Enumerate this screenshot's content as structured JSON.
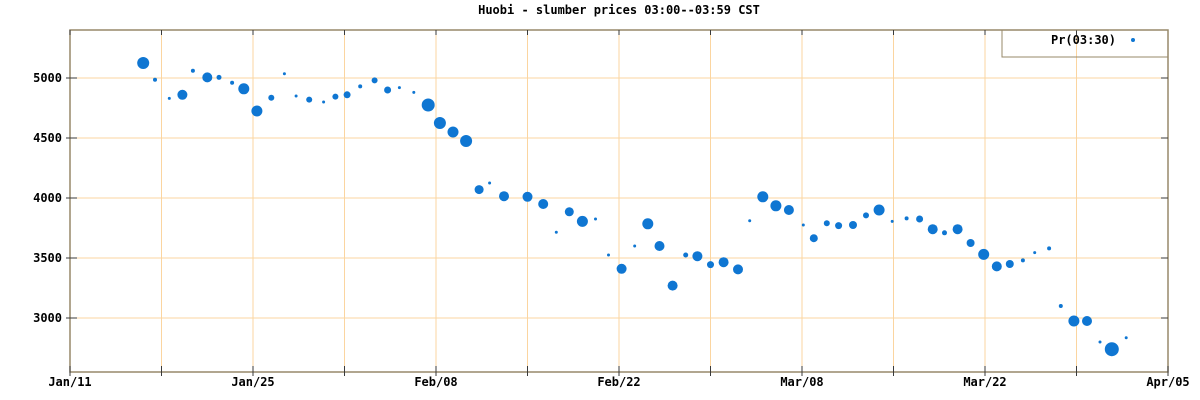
{
  "chart_data": {
    "type": "scatter",
    "title": "Huobi - slumber prices 03:00--03:59 CST",
    "legend": {
      "label": "Pr(03:30)",
      "position": "top-right",
      "boxed": true,
      "marker": "point"
    },
    "x_axis": {
      "kind": "date",
      "range_days": [
        0,
        84
      ],
      "minor_interval_days": 7,
      "grid": true,
      "major_ticks": [
        {
          "d": 0,
          "label": "Jan/11"
        },
        {
          "d": 14,
          "label": "Jan/25"
        },
        {
          "d": 28,
          "label": "Feb/08"
        },
        {
          "d": 42,
          "label": "Feb/22"
        },
        {
          "d": 56,
          "label": "Mar/08"
        },
        {
          "d": 70,
          "label": "Mar/22"
        },
        {
          "d": 84,
          "label": "Apr/05"
        }
      ]
    },
    "y_axis": {
      "range": [
        2550,
        5400
      ],
      "ticks": [
        3000,
        3500,
        4000,
        4500,
        5000
      ],
      "grid": true
    },
    "colors": {
      "point": "#0F76D2",
      "grid": "#FBD5A0",
      "frame": "#97886A",
      "tick": "#3A3A3A",
      "text": "#000000",
      "background": "#FFFFFF"
    },
    "points": [
      {
        "d": 5.6,
        "p": 5125,
        "r": 6
      },
      {
        "d": 6.5,
        "p": 4985,
        "r": 2
      },
      {
        "d": 7.6,
        "p": 4830,
        "r": 1.5
      },
      {
        "d": 8.6,
        "p": 4860,
        "r": 5
      },
      {
        "d": 9.4,
        "p": 5060,
        "r": 2
      },
      {
        "d": 10.5,
        "p": 5005,
        "r": 5
      },
      {
        "d": 11.4,
        "p": 5005,
        "r": 2.5
      },
      {
        "d": 12.4,
        "p": 4960,
        "r": 2
      },
      {
        "d": 13.3,
        "p": 4910,
        "r": 5.5
      },
      {
        "d": 14.3,
        "p": 4725,
        "r": 5.5
      },
      {
        "d": 15.4,
        "p": 4835,
        "r": 3
      },
      {
        "d": 16.4,
        "p": 5035,
        "r": 1.5
      },
      {
        "d": 17.3,
        "p": 4850,
        "r": 1.5
      },
      {
        "d": 18.3,
        "p": 4820,
        "r": 3
      },
      {
        "d": 19.4,
        "p": 4800,
        "r": 1.5
      },
      {
        "d": 20.3,
        "p": 4845,
        "r": 3
      },
      {
        "d": 21.2,
        "p": 4860,
        "r": 3.5
      },
      {
        "d": 22.2,
        "p": 4930,
        "r": 2
      },
      {
        "d": 23.3,
        "p": 4980,
        "r": 3
      },
      {
        "d": 24.3,
        "p": 4900,
        "r": 3.5
      },
      {
        "d": 25.2,
        "p": 4920,
        "r": 1.5
      },
      {
        "d": 26.3,
        "p": 4880,
        "r": 1.5
      },
      {
        "d": 27.4,
        "p": 4775,
        "r": 6.5
      },
      {
        "d": 28.3,
        "p": 4625,
        "r": 6
      },
      {
        "d": 29.3,
        "p": 4550,
        "r": 5.5
      },
      {
        "d": 30.3,
        "p": 4475,
        "r": 6
      },
      {
        "d": 31.3,
        "p": 4070,
        "r": 4.5
      },
      {
        "d": 32.1,
        "p": 4125,
        "r": 1.5
      },
      {
        "d": 33.2,
        "p": 4015,
        "r": 5
      },
      {
        "d": 35.0,
        "p": 4010,
        "r": 5
      },
      {
        "d": 36.2,
        "p": 3950,
        "r": 5
      },
      {
        "d": 37.2,
        "p": 3715,
        "r": 1.5
      },
      {
        "d": 38.2,
        "p": 3885,
        "r": 4.5
      },
      {
        "d": 39.2,
        "p": 3805,
        "r": 5.5
      },
      {
        "d": 40.2,
        "p": 3825,
        "r": 1.5
      },
      {
        "d": 41.2,
        "p": 3525,
        "r": 1.5
      },
      {
        "d": 42.2,
        "p": 3410,
        "r": 5
      },
      {
        "d": 43.2,
        "p": 3600,
        "r": 1.5
      },
      {
        "d": 44.2,
        "p": 3785,
        "r": 5.5
      },
      {
        "d": 45.1,
        "p": 3600,
        "r": 5
      },
      {
        "d": 46.1,
        "p": 3270,
        "r": 5
      },
      {
        "d": 47.1,
        "p": 3525,
        "r": 2.5
      },
      {
        "d": 48,
        "p": 3515,
        "r": 5
      },
      {
        "d": 49,
        "p": 3445,
        "r": 3.5
      },
      {
        "d": 50,
        "p": 3465,
        "r": 5
      },
      {
        "d": 51.1,
        "p": 3405,
        "r": 5
      },
      {
        "d": 52,
        "p": 3810,
        "r": 1.5
      },
      {
        "d": 53,
        "p": 4010,
        "r": 5.5
      },
      {
        "d": 54,
        "p": 3935,
        "r": 5.5
      },
      {
        "d": 55,
        "p": 3900,
        "r": 5
      },
      {
        "d": 56.1,
        "p": 3775,
        "r": 1.5
      },
      {
        "d": 56.9,
        "p": 3665,
        "r": 4
      },
      {
        "d": 57.9,
        "p": 3790,
        "r": 3
      },
      {
        "d": 58.8,
        "p": 3770,
        "r": 3.5
      },
      {
        "d": 59.9,
        "p": 3775,
        "r": 4
      },
      {
        "d": 60.9,
        "p": 3855,
        "r": 3
      },
      {
        "d": 61.9,
        "p": 3900,
        "r": 5.5
      },
      {
        "d": 62.9,
        "p": 3805,
        "r": 1.5
      },
      {
        "d": 64,
        "p": 3830,
        "r": 2
      },
      {
        "d": 65,
        "p": 3825,
        "r": 3.5
      },
      {
        "d": 66,
        "p": 3740,
        "r": 5
      },
      {
        "d": 66.9,
        "p": 3710,
        "r": 2.5
      },
      {
        "d": 67.9,
        "p": 3740,
        "r": 5
      },
      {
        "d": 68.9,
        "p": 3625,
        "r": 4
      },
      {
        "d": 69.9,
        "p": 3530,
        "r": 5.5
      },
      {
        "d": 70.9,
        "p": 3430,
        "r": 5
      },
      {
        "d": 71.9,
        "p": 3450,
        "r": 4
      },
      {
        "d": 72.9,
        "p": 3480,
        "r": 2
      },
      {
        "d": 73.8,
        "p": 3545,
        "r": 1.5
      },
      {
        "d": 74.9,
        "p": 3580,
        "r": 2
      },
      {
        "d": 75.8,
        "p": 3100,
        "r": 2
      },
      {
        "d": 76.8,
        "p": 2975,
        "r": 5.5
      },
      {
        "d": 77.8,
        "p": 2975,
        "r": 5
      },
      {
        "d": 78.8,
        "p": 2800,
        "r": 1.5
      },
      {
        "d": 79.7,
        "p": 2740,
        "r": 7
      },
      {
        "d": 80.8,
        "p": 2835,
        "r": 1.5
      }
    ]
  }
}
